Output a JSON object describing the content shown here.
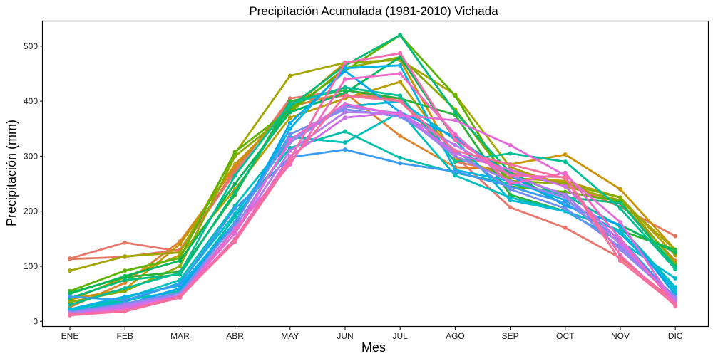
{
  "chart_data": {
    "type": "line",
    "title": "Precipitación Acumulada (1981-2010)  Vichada",
    "xlabel": "Mes",
    "ylabel": "Precipitación  (mm)",
    "categories": [
      "ENE",
      "FEB",
      "MAR",
      "ABR",
      "MAY",
      "JUN",
      "JUL",
      "AGO",
      "SEP",
      "OCT",
      "NOV",
      "DIC"
    ],
    "ylim": [
      -10,
      545
    ],
    "yticks": [
      0,
      100,
      200,
      300,
      400,
      500
    ],
    "grid": false,
    "legend": "none",
    "series": [
      {
        "color": "#E8766D",
        "values": [
          114,
          143,
          127,
          270,
          405,
          420,
          400,
          300,
          207,
          170,
          115,
          35
        ]
      },
      {
        "color": "#E4785F",
        "values": [
          113,
          117,
          130,
          275,
          400,
          410,
          405,
          290,
          270,
          250,
          208,
          155
        ]
      },
      {
        "color": "#D9832E",
        "values": [
          26,
          70,
          145,
          280,
          390,
          415,
          337,
          280,
          275,
          250,
          215,
          110
        ]
      },
      {
        "color": "#C99400",
        "values": [
          40,
          58,
          140,
          285,
          385,
          470,
          475,
          295,
          285,
          303,
          240,
          130
        ]
      },
      {
        "color": "#B79F00",
        "values": [
          38,
          80,
          120,
          240,
          370,
          405,
          435,
          300,
          260,
          255,
          225,
          120
        ]
      },
      {
        "color": "#A3A500",
        "values": [
          92,
          118,
          125,
          305,
          446,
          470,
          475,
          412,
          280,
          245,
          220,
          130
        ]
      },
      {
        "color": "#8AAB00",
        "values": [
          35,
          55,
          100,
          300,
          380,
          460,
          480,
          385,
          255,
          250,
          225,
          105
        ]
      },
      {
        "color": "#5EB300",
        "values": [
          55,
          92,
          115,
          308,
          385,
          455,
          520,
          410,
          245,
          235,
          218,
          95
        ]
      },
      {
        "color": "#2AB33A",
        "values": [
          52,
          80,
          90,
          230,
          400,
          420,
          405,
          375,
          230,
          200,
          165,
          130
        ]
      },
      {
        "color": "#00B85A",
        "values": [
          50,
          82,
          110,
          250,
          380,
          415,
          480,
          330,
          270,
          210,
          175,
          125
        ]
      },
      {
        "color": "#00BB7A",
        "values": [
          42,
          75,
          85,
          235,
          390,
          465,
          520,
          380,
          270,
          225,
          215,
          100
        ]
      },
      {
        "color": "#00BE95",
        "values": [
          30,
          60,
          88,
          265,
          395,
          425,
          410,
          290,
          305,
          290,
          205,
          95
        ]
      },
      {
        "color": "#00BFA8",
        "values": [
          22,
          38,
          55,
          190,
          315,
          345,
          297,
          270,
          250,
          230,
          172,
          62
        ]
      },
      {
        "color": "#00C0BC",
        "values": [
          20,
          42,
          75,
          210,
          335,
          325,
          380,
          265,
          225,
          200,
          165,
          55
        ]
      },
      {
        "color": "#00BCD1",
        "values": [
          18,
          35,
          70,
          195,
          330,
          390,
          400,
          330,
          220,
          200,
          145,
          78
        ]
      },
      {
        "color": "#00B4E4",
        "values": [
          22,
          45,
          65,
          180,
          350,
          460,
          465,
          275,
          255,
          220,
          160,
          60
        ]
      },
      {
        "color": "#00A8F0",
        "values": [
          15,
          30,
          60,
          175,
          360,
          455,
          380,
          335,
          265,
          210,
          175,
          48
        ]
      },
      {
        "color": "#3A9BF2",
        "values": [
          45,
          38,
          68,
          205,
          298,
          312,
          287,
          272,
          245,
          215,
          150,
          40
        ]
      },
      {
        "color": "#6E8FF0",
        "values": [
          17,
          32,
          52,
          178,
          340,
          385,
          372,
          310,
          240,
          205,
          135,
          45
        ]
      },
      {
        "color": "#9A84EE",
        "values": [
          15,
          30,
          48,
          170,
          325,
          390,
          378,
          300,
          255,
          225,
          130,
          42
        ]
      },
      {
        "color": "#B779EE",
        "values": [
          14,
          28,
          47,
          160,
          310,
          380,
          378,
          320,
          265,
          230,
          140,
          38
        ]
      },
      {
        "color": "#D06EE8",
        "values": [
          12,
          25,
          45,
          150,
          300,
          370,
          380,
          305,
          275,
          245,
          145,
          35
        ]
      },
      {
        "color": "#E36AD8",
        "values": [
          12,
          22,
          46,
          160,
          330,
          395,
          375,
          365,
          320,
          265,
          180,
          32
        ]
      },
      {
        "color": "#EE68C6",
        "values": [
          11,
          20,
          44,
          168,
          285,
          440,
          450,
          340,
          250,
          270,
          150,
          30
        ]
      },
      {
        "color": "#F46BAF",
        "values": [
          13,
          18,
          43,
          150,
          295,
          470,
          487,
          330,
          265,
          262,
          120,
          28
        ]
      },
      {
        "color": "#F5709B",
        "values": [
          11,
          18,
          45,
          145,
          290,
          410,
          400,
          310,
          285,
          260,
          110,
          30
        ]
      }
    ]
  }
}
